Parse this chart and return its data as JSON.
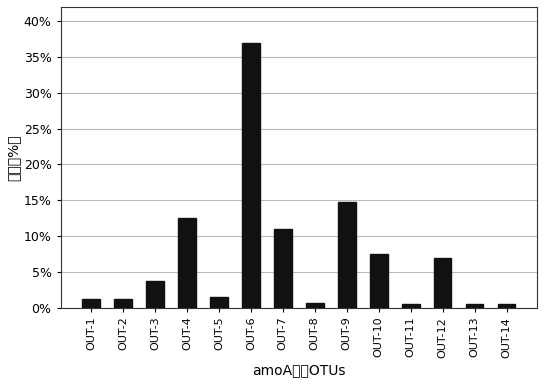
{
  "categories": [
    "OUT-1",
    "OUT-2",
    "OUT-3",
    "OUT-4",
    "OUT-5",
    "OUT-6",
    "OUT-7",
    "OUT-8",
    "OUT-9",
    "OUT-10",
    "OUT-11",
    "OUT-12",
    "OUT-13",
    "OUT-14"
  ],
  "values": [
    1.2,
    1.2,
    3.8,
    12.5,
    1.5,
    37.0,
    11.0,
    0.7,
    14.8,
    7.5,
    0.5,
    7.0,
    0.5,
    0.5
  ],
  "bar_color": "#111111",
  "xlabel": "amoA基因OTUs",
  "ylabel": "丰度（%）",
  "ylim": [
    0,
    42
  ],
  "yticks": [
    0,
    5,
    10,
    15,
    20,
    25,
    30,
    35,
    40
  ],
  "background_color": "#ffffff",
  "grid_color": "#bbbbbb",
  "bar_width": 0.55
}
